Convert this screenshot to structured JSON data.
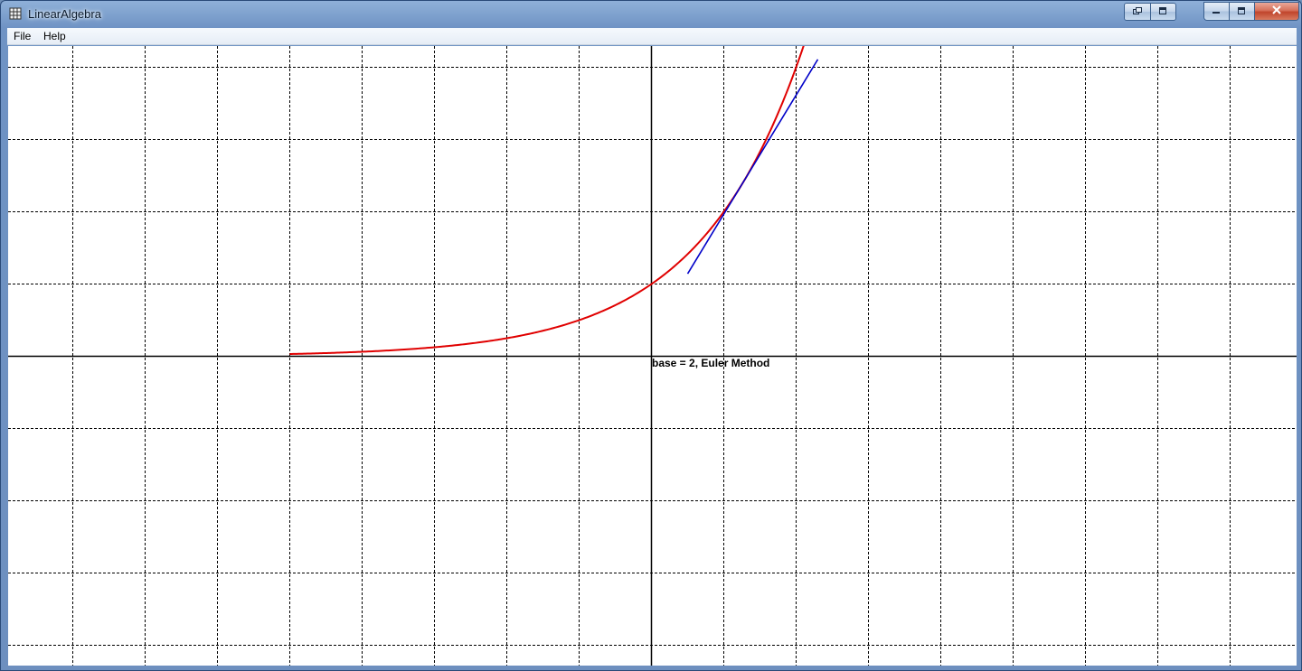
{
  "window": {
    "title": "LinearAlgebra",
    "app_icon": "grid-app-icon",
    "mdi_buttons": [
      "restore-icon",
      "maximize-icon"
    ],
    "window_buttons": [
      "minimize-icon",
      "maximize-icon",
      "close-icon"
    ]
  },
  "menu": {
    "items": [
      {
        "label": "File"
      },
      {
        "label": "Help"
      }
    ]
  },
  "plot": {
    "caption": "base = 2, Euler Method",
    "colors": {
      "grid": "#000000",
      "axes": "#000000",
      "curve": "#e00000",
      "tangent": "#0000c8",
      "background": "#ffffff"
    },
    "grid": "dashed",
    "x_range": [
      -9,
      9
    ],
    "y_range": [
      -4.2,
      4.3
    ],
    "curve": {
      "function": "2^x",
      "x_from": -5,
      "x_to": 2.3
    },
    "tangent": {
      "x0": 1.25,
      "x_from": 0.5,
      "x_to": 2.3
    }
  }
}
